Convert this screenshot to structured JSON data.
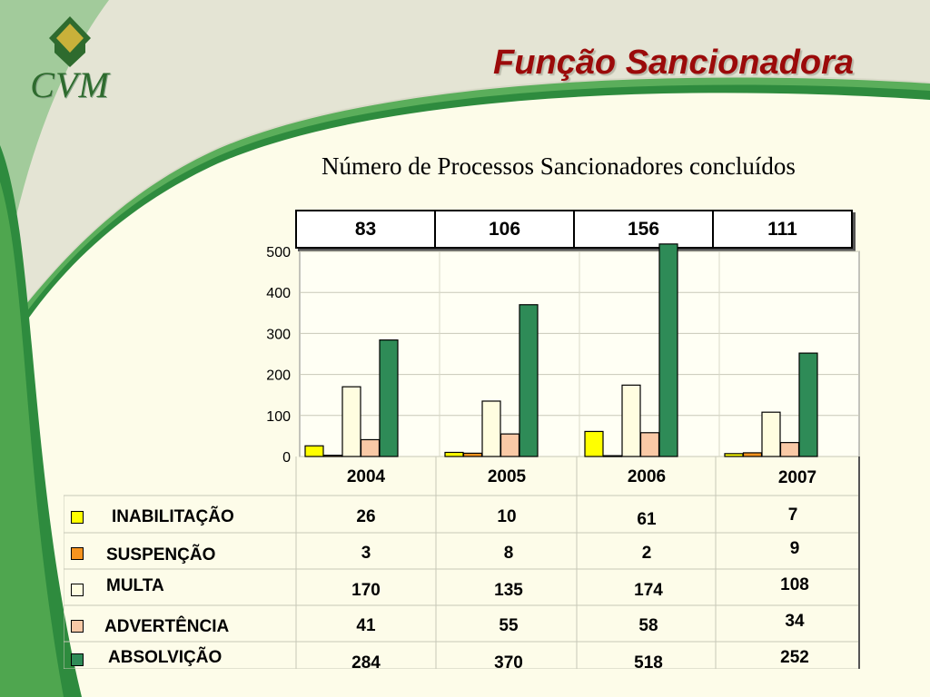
{
  "header": {
    "logo_text": "CVM",
    "title": "Função Sancionadora"
  },
  "colors": {
    "background": "#FDFCE9",
    "title": "#9B0A0A",
    "green_band": "#2E8B3E",
    "inabilitacao": "#FFFF00",
    "suspencao": "#F7931E",
    "multa": "#FFFDE0",
    "advertencia": "#F9C9A6",
    "absolvicao": "#2E8B57"
  },
  "chart_data": {
    "type": "bar",
    "title": "Número de Processos Sancionadores concluídos",
    "categories": [
      "2004",
      "2005",
      "2006",
      "2007"
    ],
    "totals": [
      "83",
      "106",
      "156",
      "111"
    ],
    "ylim": [
      0,
      500
    ],
    "yticks": [
      "0",
      "100",
      "200",
      "300",
      "400",
      "500"
    ],
    "grid": true,
    "legend": "table-below",
    "series": [
      {
        "name": "INABILITAÇÃO",
        "color": "#FFFF00",
        "values": [
          26,
          10,
          61,
          7
        ],
        "labels": [
          "26",
          "10",
          "61",
          "7"
        ]
      },
      {
        "name": "SUSPENÇÃO",
        "color": "#F7931E",
        "values": [
          3,
          8,
          2,
          9
        ],
        "labels": [
          "3",
          "8",
          "2",
          "9"
        ]
      },
      {
        "name": "MULTA",
        "color": "#FFFDE0",
        "values": [
          170,
          135,
          174,
          108
        ],
        "labels": [
          "170",
          "135",
          "174",
          "108"
        ]
      },
      {
        "name": "ADVERTÊNCIA",
        "color": "#F9C9A6",
        "values": [
          41,
          55,
          58,
          34
        ],
        "labels": [
          "41",
          "55",
          "58",
          "34"
        ]
      },
      {
        "name": "ABSOLVIÇÃO",
        "color": "#2E8B57",
        "values": [
          284,
          370,
          518,
          252
        ],
        "labels": [
          "284",
          "370",
          "518",
          "252"
        ]
      }
    ]
  }
}
